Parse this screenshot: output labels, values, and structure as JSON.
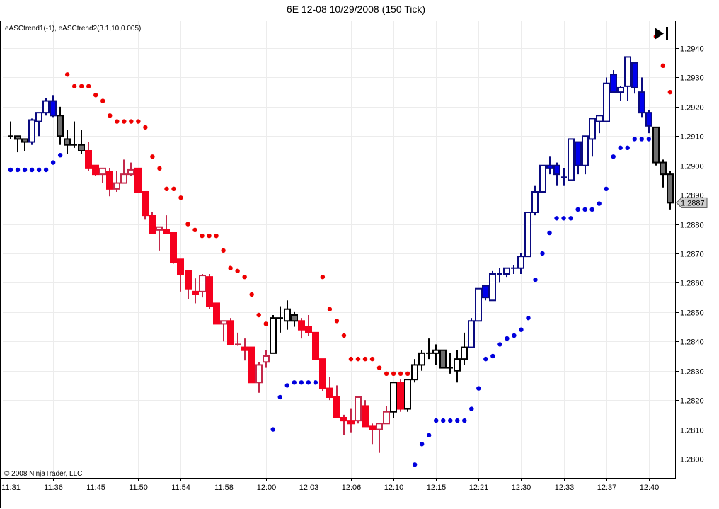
{
  "chart_data": {
    "type": "candlestick",
    "title": "6E 12-08  10/29/2008 (150 Tick)",
    "indicator_label": "eASCtrend1(-1), eASCtrend2(3.1,10,0.005)",
    "copyright": "© 2008 NinjaTrader, LLC",
    "ylim": [
      1.27934,
      1.29492
    ],
    "grid": true,
    "last_price_label": "1.2887",
    "last_price": 1.28873,
    "y_ticks": [
      {
        "v": 1.28,
        "label": "1.2800"
      },
      {
        "v": 1.281,
        "label": "1.2810"
      },
      {
        "v": 1.282,
        "label": "1.2820"
      },
      {
        "v": 1.283,
        "label": "1.2830"
      },
      {
        "v": 1.284,
        "label": "1.2840"
      },
      {
        "v": 1.285,
        "label": "1.2850"
      },
      {
        "v": 1.286,
        "label": "1.2860"
      },
      {
        "v": 1.287,
        "label": "1.2870"
      },
      {
        "v": 1.288,
        "label": "1.2880"
      },
      {
        "v": 1.289,
        "label": "1.2890"
      },
      {
        "v": 1.29,
        "label": "1.2900"
      },
      {
        "v": 1.291,
        "label": "1.2910"
      },
      {
        "v": 1.292,
        "label": "1.2920"
      },
      {
        "v": 1.293,
        "label": "1.2930"
      },
      {
        "v": 1.294,
        "label": "1.2940"
      }
    ],
    "x_ticks": [
      {
        "bar": 0,
        "label": "11:31"
      },
      {
        "bar": 6,
        "label": "11:36"
      },
      {
        "bar": 12,
        "label": "11:45"
      },
      {
        "bar": 18,
        "label": "11:50"
      },
      {
        "bar": 24,
        "label": "11:54"
      },
      {
        "bar": 30,
        "label": "11:58"
      },
      {
        "bar": 36,
        "label": "12:00"
      },
      {
        "bar": 42,
        "label": "12:03"
      },
      {
        "bar": 48,
        "label": "12:06"
      },
      {
        "bar": 54,
        "label": "12:10"
      },
      {
        "bar": 60,
        "label": "12:15"
      },
      {
        "bar": 66,
        "label": "12:21"
      },
      {
        "bar": 72,
        "label": "12:30"
      },
      {
        "bar": 78,
        "label": "12:33"
      },
      {
        "bar": 84,
        "label": "12:37"
      },
      {
        "bar": 90,
        "label": "12:40"
      }
    ],
    "colors": {
      "bull_outline": "#0a0a80",
      "bull_fill": "#0000ee",
      "bear_outline": "#c4284a",
      "bear_fill": "#f5001e",
      "neutral_outline": "#000000",
      "neutral_fill": "#6e6e6e",
      "dot_below": "#0000dd",
      "dot_above": "#ee0000"
    },
    "bars_ohlc_trend": [
      [
        1.291,
        1.2915,
        1.2909,
        1.291,
        "n"
      ],
      [
        1.291,
        1.291,
        1.29045,
        1.2909,
        "n"
      ],
      [
        1.2909,
        1.2909,
        1.2905,
        1.2908,
        "n"
      ],
      [
        1.2908,
        1.2916,
        1.2907,
        1.29155,
        "b"
      ],
      [
        1.2915,
        1.2918,
        1.291,
        1.2918,
        "b"
      ],
      [
        1.2918,
        1.2923,
        1.2917,
        1.2922,
        "b"
      ],
      [
        1.2922,
        1.2924,
        1.29165,
        1.2917,
        "b"
      ],
      [
        1.2917,
        1.292,
        1.2907,
        1.291,
        "n"
      ],
      [
        1.2909,
        1.2912,
        1.2904,
        1.2907,
        "n"
      ],
      [
        1.2907,
        1.2915,
        1.2906,
        1.2907,
        "n"
      ],
      [
        1.2907,
        1.2912,
        1.2904,
        1.2905,
        "n"
      ],
      [
        1.2905,
        1.2908,
        1.2898,
        1.2899,
        "r"
      ],
      [
        1.29,
        1.29,
        1.28965,
        1.2897,
        "r"
      ],
      [
        1.2897,
        1.2899,
        1.2894,
        1.2899,
        "r"
      ],
      [
        1.2898,
        1.2899,
        1.28895,
        1.2892,
        "r"
      ],
      [
        1.2892,
        1.2898,
        1.2891,
        1.2894,
        "r"
      ],
      [
        1.2894,
        1.2902,
        1.2894,
        1.2897,
        "r"
      ],
      [
        1.2897,
        1.2901,
        1.28965,
        1.28985,
        "r"
      ],
      [
        1.2899,
        1.2899,
        1.2891,
        1.2891,
        "r"
      ],
      [
        1.2891,
        1.2891,
        1.28815,
        1.2883,
        "r"
      ],
      [
        1.2883,
        1.2884,
        1.2877,
        1.2877,
        "r"
      ],
      [
        1.2878,
        1.2879,
        1.2871,
        1.2879,
        "r"
      ],
      [
        1.2878,
        1.2883,
        1.2877,
        1.2877,
        "r"
      ],
      [
        1.2877,
        1.2877,
        1.28665,
        1.2867,
        "r"
      ],
      [
        1.2868,
        1.2868,
        1.2857,
        1.2863,
        "r"
      ],
      [
        1.2864,
        1.2864,
        1.28545,
        1.2858,
        "r"
      ],
      [
        1.2857,
        1.28615,
        1.2853,
        1.2856,
        "r"
      ],
      [
        1.2857,
        1.2863,
        1.2855,
        1.28625,
        "r"
      ],
      [
        1.2862,
        1.2863,
        1.2851,
        1.2852,
        "r"
      ],
      [
        1.2853,
        1.2853,
        1.2846,
        1.2846,
        "r"
      ],
      [
        1.2846,
        1.2847,
        1.284,
        1.2847,
        "r"
      ],
      [
        1.2847,
        1.2848,
        1.2839,
        1.2839,
        "r"
      ],
      [
        1.2839,
        1.2843,
        1.28385,
        1.2839,
        "r"
      ],
      [
        1.2838,
        1.2841,
        1.28335,
        1.2837,
        "r"
      ],
      [
        1.2838,
        1.2838,
        1.2826,
        1.2826,
        "r"
      ],
      [
        1.2826,
        1.2833,
        1.28225,
        1.2832,
        "r"
      ],
      [
        1.2833,
        1.2837,
        1.2831,
        1.2835,
        "r"
      ],
      [
        1.2836,
        1.2849,
        1.2836,
        1.2848,
        "n"
      ],
      [
        1.2848,
        1.2852,
        1.2843,
        1.2848,
        "n"
      ],
      [
        1.2847,
        1.2854,
        1.2844,
        1.2851,
        "n"
      ],
      [
        1.2849,
        1.285,
        1.2845,
        1.2847,
        "n"
      ],
      [
        1.2847,
        1.2848,
        1.2841,
        1.2844,
        "r"
      ],
      [
        1.2845,
        1.2849,
        1.2842,
        1.2843,
        "r"
      ],
      [
        1.2843,
        1.2843,
        1.2834,
        1.2834,
        "r"
      ],
      [
        1.2834,
        1.2834,
        1.2823,
        1.2824,
        "r"
      ],
      [
        1.2824,
        1.2828,
        1.282,
        1.2821,
        "r"
      ],
      [
        1.2821,
        1.2825,
        1.2814,
        1.2814,
        "r"
      ],
      [
        1.2814,
        1.2815,
        1.2808,
        1.2813,
        "r"
      ],
      [
        1.2813,
        1.2817,
        1.2809,
        1.2812,
        "r"
      ],
      [
        1.2813,
        1.2821,
        1.2812,
        1.2821,
        "r"
      ],
      [
        1.2818,
        1.282,
        1.2811,
        1.2811,
        "r"
      ],
      [
        1.2811,
        1.2812,
        1.2805,
        1.281,
        "r"
      ],
      [
        1.281,
        1.2812,
        1.2802,
        1.2812,
        "r"
      ],
      [
        1.2812,
        1.2818,
        1.2812,
        1.2816,
        "r"
      ],
      [
        1.2816,
        1.2826,
        1.2814,
        1.2826,
        "n"
      ],
      [
        1.2826,
        1.2827,
        1.2816,
        1.2817,
        "r"
      ],
      [
        1.2817,
        1.2827,
        1.2816,
        1.2827,
        "n"
      ],
      [
        1.2827,
        1.2834,
        1.2826,
        1.2832,
        "n"
      ],
      [
        1.2832,
        1.2837,
        1.283,
        1.2836,
        "n"
      ],
      [
        1.2836,
        1.2841,
        1.2834,
        1.2836,
        "n"
      ],
      [
        1.2836,
        1.2839,
        1.2832,
        1.2837,
        "n"
      ],
      [
        1.2837,
        1.2837,
        1.2831,
        1.2831,
        "n"
      ],
      [
        1.2831,
        1.2836,
        1.2829,
        1.2831,
        "n"
      ],
      [
        1.283,
        1.2837,
        1.2826,
        1.2834,
        "n"
      ],
      [
        1.2834,
        1.2843,
        1.2832,
        1.2838,
        "n"
      ],
      [
        1.2838,
        1.2848,
        1.2838,
        1.2847,
        "b"
      ],
      [
        1.2847,
        1.2858,
        1.2847,
        1.2858,
        "b"
      ],
      [
        1.2859,
        1.2859,
        1.2854,
        1.2855,
        "b"
      ],
      [
        1.2854,
        1.2864,
        1.2854,
        1.2863,
        "b"
      ],
      [
        1.2863,
        1.2865,
        1.286,
        1.2863,
        "b"
      ],
      [
        1.2863,
        1.2865,
        1.2862,
        1.2865,
        "b"
      ],
      [
        1.2865,
        1.2866,
        1.2863,
        1.2865,
        "b"
      ],
      [
        1.2865,
        1.287,
        1.2863,
        1.2869,
        "b"
      ],
      [
        1.2869,
        1.2884,
        1.2869,
        1.2884,
        "b"
      ],
      [
        1.2884,
        1.2893,
        1.2883,
        1.2891,
        "b"
      ],
      [
        1.2891,
        1.29,
        1.2891,
        1.29,
        "b"
      ],
      [
        1.29,
        1.2903,
        1.2897,
        1.2899,
        "b"
      ],
      [
        1.29,
        1.2901,
        1.2893,
        1.2897,
        "b"
      ],
      [
        1.2896,
        1.2899,
        1.2893,
        1.2896,
        "b"
      ],
      [
        1.2895,
        1.2909,
        1.2895,
        1.2909,
        "b"
      ],
      [
        1.2908,
        1.2908,
        1.2897,
        1.29,
        "b"
      ],
      [
        1.29,
        1.291,
        1.2897,
        1.291,
        "b"
      ],
      [
        1.2909,
        1.2916,
        1.2903,
        1.2916,
        "b"
      ],
      [
        1.2915,
        1.2917,
        1.2911,
        1.2917,
        "b"
      ],
      [
        1.2915,
        1.293,
        1.2915,
        1.2928,
        "b"
      ],
      [
        1.2931,
        1.29325,
        1.2925,
        1.2925,
        "b"
      ],
      [
        1.2925,
        1.2927,
        1.2922,
        1.29265,
        "b"
      ],
      [
        1.2927,
        1.2937,
        1.2922,
        1.2937,
        "b"
      ],
      [
        1.2935,
        1.2935,
        1.29245,
        1.29265,
        "b"
      ],
      [
        1.2925,
        1.293,
        1.29165,
        1.2918,
        "b"
      ],
      [
        1.2918,
        1.2919,
        1.2911,
        1.29135,
        "b"
      ],
      [
        1.2913,
        1.2913,
        1.29,
        1.2901,
        "n"
      ],
      [
        1.2901,
        1.2902,
        1.28925,
        1.2897,
        "n"
      ],
      [
        1.2897,
        1.2898,
        1.2885,
        1.28873,
        "n"
      ]
    ],
    "dots_below": [
      [
        0,
        1.28985
      ],
      [
        1,
        1.28985
      ],
      [
        2,
        1.28985
      ],
      [
        3,
        1.28985
      ],
      [
        4,
        1.28985
      ],
      [
        5,
        1.28985
      ],
      [
        6,
        1.2901
      ],
      [
        7,
        1.29035
      ],
      [
        37,
        1.281
      ],
      [
        38,
        1.2821
      ],
      [
        39,
        1.2825
      ],
      [
        40,
        1.2826
      ],
      [
        41,
        1.2826
      ],
      [
        42,
        1.2826
      ],
      [
        43,
        1.2826
      ],
      [
        57,
        1.2798
      ],
      [
        58,
        1.2805
      ],
      [
        59,
        1.2808
      ],
      [
        60,
        1.2813
      ],
      [
        61,
        1.2813
      ],
      [
        62,
        1.2813
      ],
      [
        63,
        1.2813
      ],
      [
        64,
        1.2813
      ],
      [
        65,
        1.2817
      ],
      [
        66,
        1.2824
      ],
      [
        67,
        1.2834
      ],
      [
        68,
        1.2835
      ],
      [
        69,
        1.2839
      ],
      [
        70,
        1.2841
      ],
      [
        71,
        1.2842
      ],
      [
        72,
        1.2844
      ],
      [
        73,
        1.2848
      ],
      [
        74,
        1.2861
      ],
      [
        75,
        1.287
      ],
      [
        76,
        1.2877
      ],
      [
        77,
        1.2882
      ],
      [
        78,
        1.2882
      ],
      [
        79,
        1.2882
      ],
      [
        80,
        1.2885
      ],
      [
        81,
        1.2885
      ],
      [
        82,
        1.2885
      ],
      [
        83,
        1.2887
      ],
      [
        84,
        1.2892
      ],
      [
        85,
        1.2903
      ],
      [
        86,
        1.2906
      ],
      [
        87,
        1.2906
      ],
      [
        88,
        1.2909
      ],
      [
        89,
        1.2909
      ],
      [
        90,
        1.2909
      ]
    ],
    "dots_above": [
      [
        8,
        1.2931
      ],
      [
        9,
        1.2927
      ],
      [
        10,
        1.2927
      ],
      [
        11,
        1.2927
      ],
      [
        12,
        1.2924
      ],
      [
        13,
        1.2922
      ],
      [
        14,
        1.2917
      ],
      [
        15,
        1.2915
      ],
      [
        16,
        1.2915
      ],
      [
        17,
        1.2915
      ],
      [
        18,
        1.2915
      ],
      [
        19,
        1.2913
      ],
      [
        20,
        1.2903
      ],
      [
        21,
        1.2899
      ],
      [
        22,
        1.2892
      ],
      [
        23,
        1.2892
      ],
      [
        24,
        1.2889
      ],
      [
        25,
        1.288
      ],
      [
        26,
        1.2878
      ],
      [
        27,
        1.2876
      ],
      [
        28,
        1.2876
      ],
      [
        29,
        1.2876
      ],
      [
        30,
        1.2871
      ],
      [
        31,
        1.2865
      ],
      [
        32,
        1.2864
      ],
      [
        33,
        1.2862
      ],
      [
        34,
        1.2856
      ],
      [
        35,
        1.2849
      ],
      [
        36,
        1.2846
      ],
      [
        44,
        1.2862
      ],
      [
        45,
        1.2851
      ],
      [
        46,
        1.2847
      ],
      [
        47,
        1.2842
      ],
      [
        48,
        1.2834
      ],
      [
        49,
        1.2834
      ],
      [
        50,
        1.2834
      ],
      [
        51,
        1.2834
      ],
      [
        52,
        1.2831
      ],
      [
        53,
        1.2829
      ],
      [
        54,
        1.2829
      ],
      [
        55,
        1.2829
      ],
      [
        56,
        1.2829
      ],
      [
        91,
        1.2944
      ],
      [
        92,
        1.2934
      ],
      [
        93,
        1.2925
      ]
    ]
  }
}
